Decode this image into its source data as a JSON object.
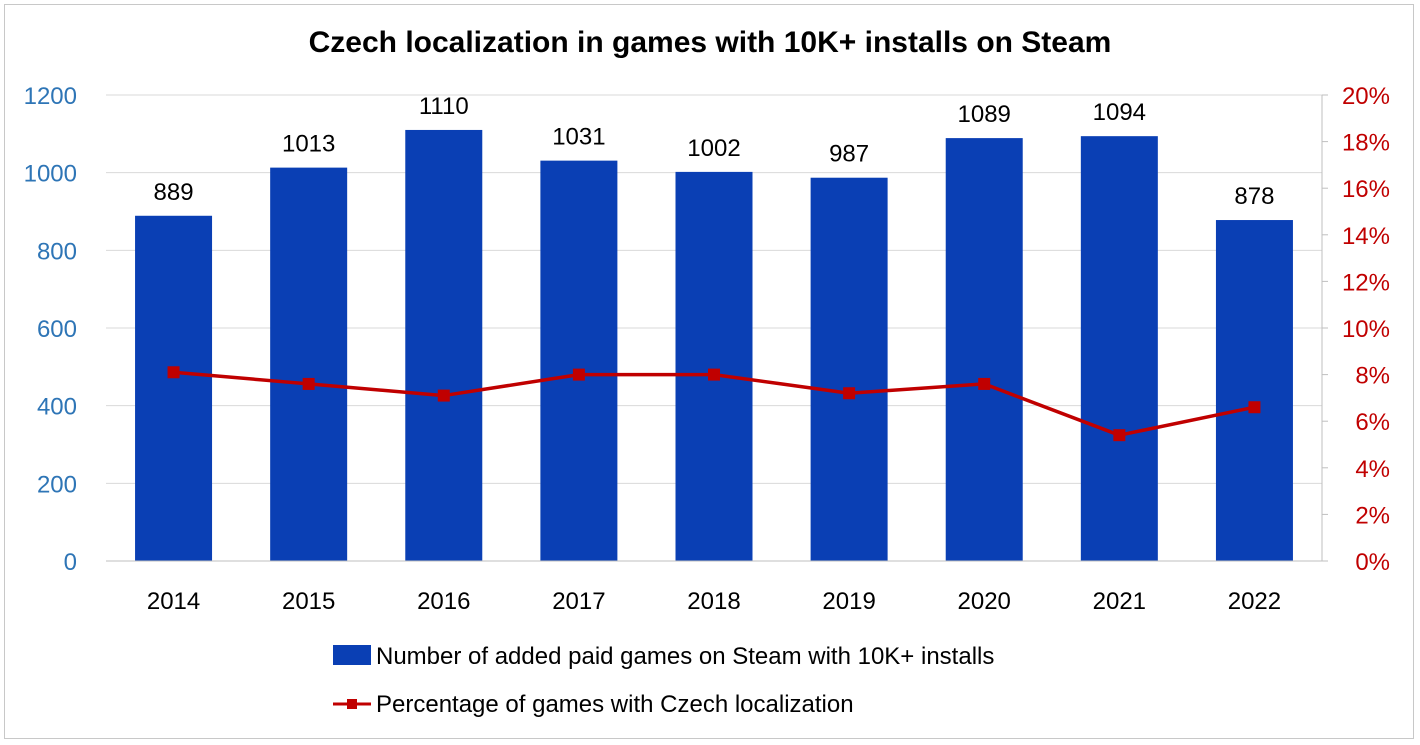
{
  "chart_data": {
    "type": "bar+line",
    "title": "Czech localization in games with 10K+ installs on Steam",
    "categories": [
      "2014",
      "2015",
      "2016",
      "2017",
      "2018",
      "2019",
      "2020",
      "2021",
      "2022"
    ],
    "series": [
      {
        "name": "Number of added paid games on Steam with 10K+ installs",
        "type": "bar",
        "axis": "left",
        "values": [
          889,
          1013,
          1110,
          1031,
          1002,
          987,
          1089,
          1094,
          878
        ],
        "data_labels": [
          "889",
          "1013",
          "1110",
          "1031",
          "1002",
          "987",
          "1089",
          "1094",
          "878"
        ]
      },
      {
        "name": "Percentage of games with Czech localization",
        "type": "line",
        "axis": "right",
        "values": [
          8.1,
          7.6,
          7.1,
          8.0,
          8.0,
          7.2,
          7.6,
          5.4,
          6.6
        ]
      }
    ],
    "y_left": {
      "min": 0,
      "max": 1200,
      "ticks": [
        "0",
        "200",
        "400",
        "600",
        "800",
        "1000",
        "1200"
      ]
    },
    "y_right": {
      "min": 0,
      "max": 20,
      "ticks": [
        "0%",
        "2%",
        "4%",
        "6%",
        "8%",
        "10%",
        "12%",
        "14%",
        "16%",
        "18%",
        "20%"
      ]
    },
    "grid": true,
    "legend": "bottom",
    "colors": {
      "bar": "#0a3fb4",
      "line": "#c00000",
      "left_axis": "#2e75b6",
      "right_axis": "#c00000",
      "grid": "#d9d9d9",
      "axis": "#bfbfbf"
    }
  }
}
